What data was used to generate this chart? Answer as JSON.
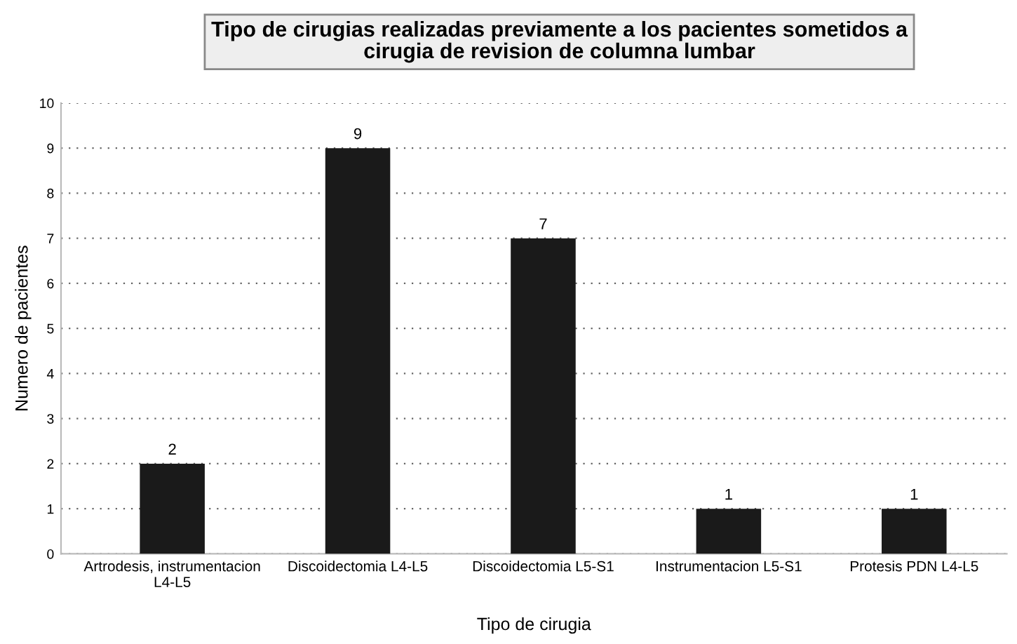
{
  "chart_data": {
    "type": "bar",
    "title": "Tipo de cirugias realizadas previamente a los pacientes sometidos a\ncirugia de revision de columna lumbar",
    "xlabel": "Tipo de cirugia",
    "ylabel": "Numero de pacientes",
    "categories": [
      "Artrodesis, instrumentacion\nL4-L5",
      "Discoidectomia L4-L5",
      "Discoidectomia L5-S1",
      "Instrumentacion L5-S1",
      "Protesis PDN L4-L5"
    ],
    "values": [
      2,
      9,
      7,
      1,
      1
    ],
    "color": "#1a1a1a",
    "ylim": [
      0,
      10
    ],
    "yticks": [
      0,
      1,
      2,
      3,
      4,
      5,
      6,
      7,
      8,
      9,
      10
    ],
    "grid": "y",
    "data_labels": true
  }
}
